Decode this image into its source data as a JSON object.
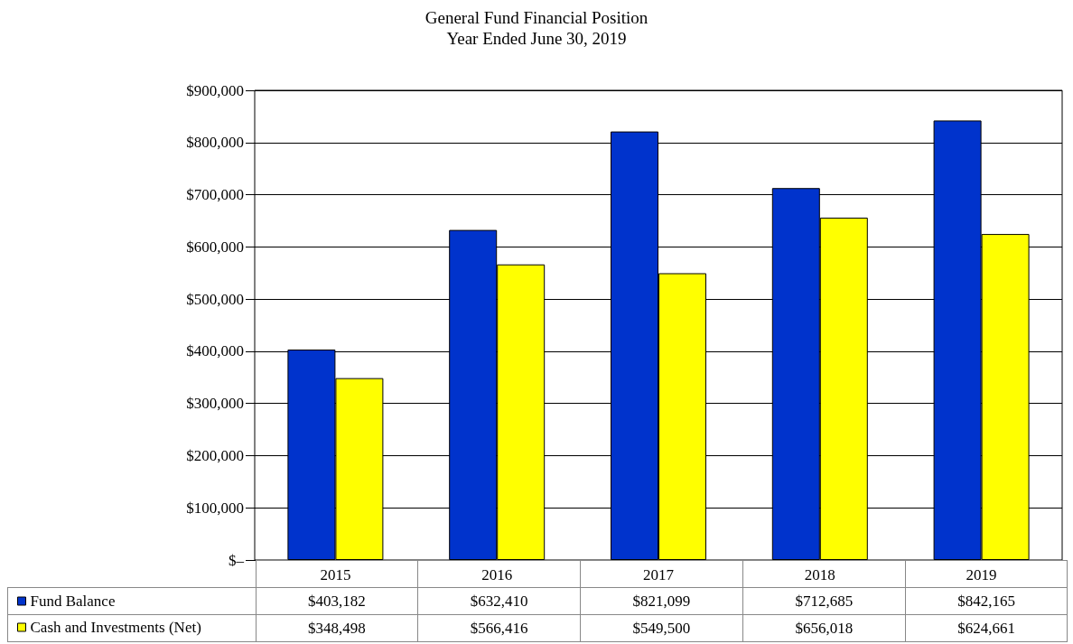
{
  "chart_data": {
    "type": "bar",
    "title": "General Fund Financial Position",
    "subtitle": "Year Ended June 30, 2019",
    "categories": [
      "2015",
      "2016",
      "2017",
      "2018",
      "2019"
    ],
    "series": [
      {
        "name": "Fund Balance",
        "color": "#0033cc",
        "values": [
          403182,
          632410,
          821099,
          712685,
          842165
        ],
        "value_labels": [
          "$403,182",
          "$632,410",
          "$821,099",
          "$712,685",
          "$842,165"
        ]
      },
      {
        "name": "Cash and Investments (Net)",
        "color": "#ffff00",
        "values": [
          348498,
          566416,
          549500,
          656018,
          624661
        ],
        "value_labels": [
          "$348,498",
          "$566,416",
          "$549,500",
          "$656,018",
          "$624,661"
        ]
      }
    ],
    "ylim": [
      0,
      900000
    ],
    "yticks": [
      {
        "value": 0,
        "label": "$–"
      },
      {
        "value": 100000,
        "label": "$100,000"
      },
      {
        "value": 200000,
        "label": "$200,000"
      },
      {
        "value": 300000,
        "label": "$300,000"
      },
      {
        "value": 400000,
        "label": "$400,000"
      },
      {
        "value": 500000,
        "label": "$500,000"
      },
      {
        "value": 600000,
        "label": "$600,000"
      },
      {
        "value": 700000,
        "label": "$700,000"
      },
      {
        "value": 800000,
        "label": "$800,000"
      },
      {
        "value": 900000,
        "label": "$900,000"
      }
    ],
    "grid": "y",
    "legend": "bottom left"
  }
}
